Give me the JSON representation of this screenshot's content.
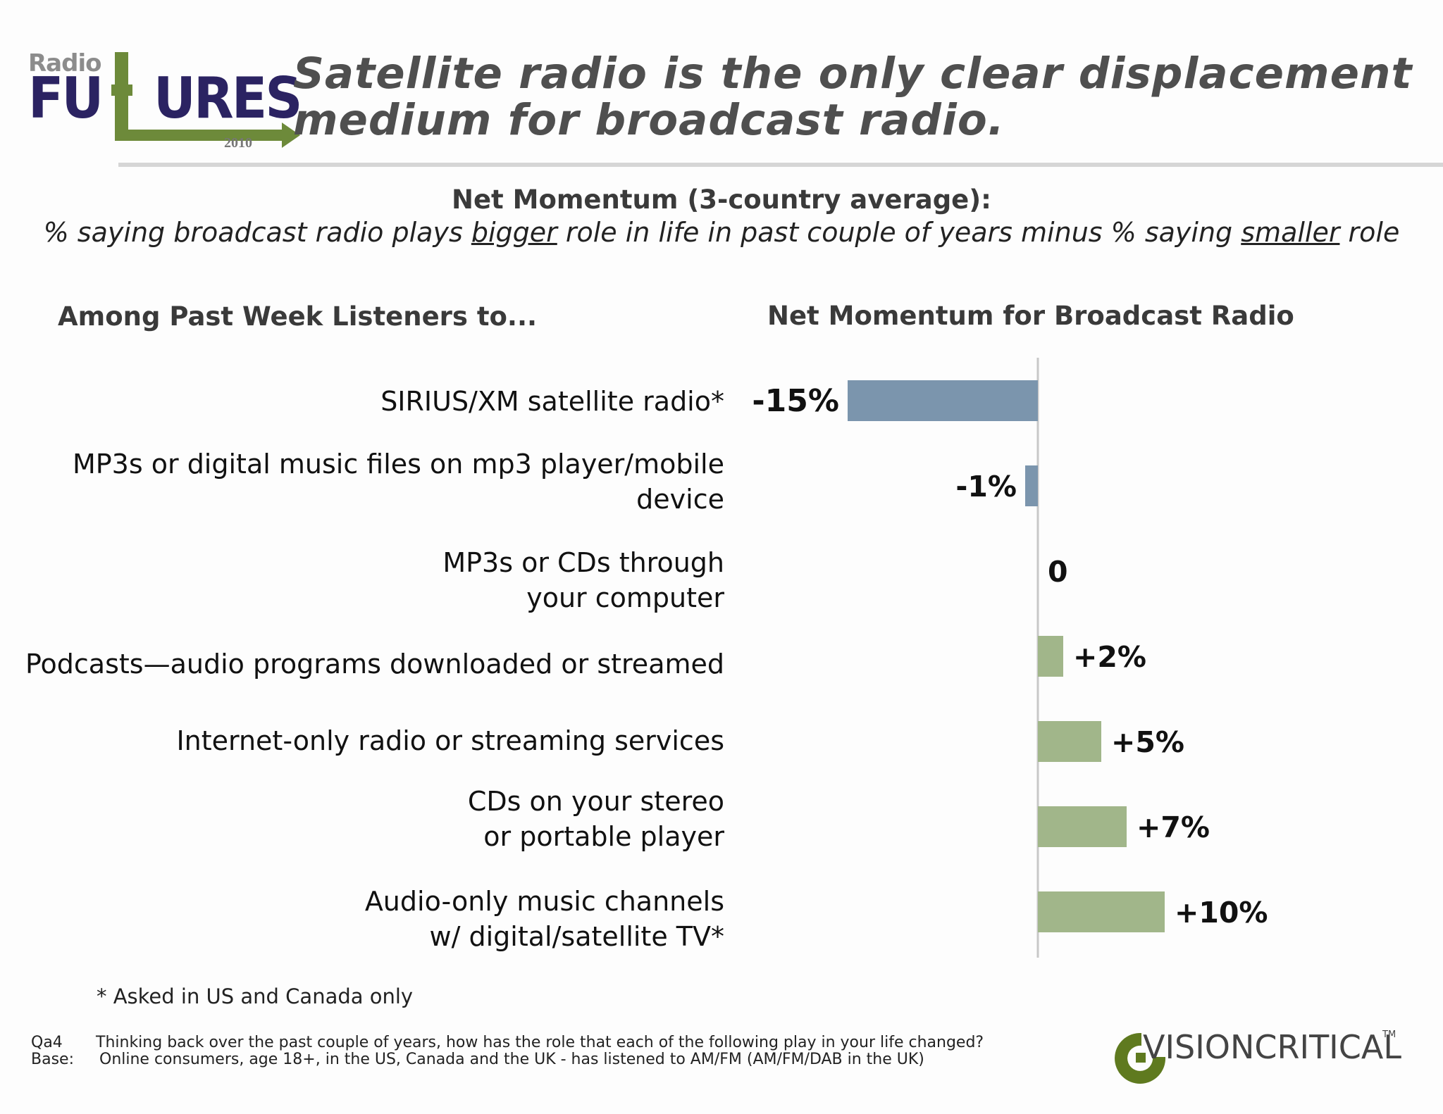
{
  "logo": {
    "top_word": "Radio",
    "main_word_left": "FU",
    "main_word_right": "URES",
    "year": "2010",
    "colors": {
      "navy": "#2b2362",
      "green": "#6d8a3a",
      "grey": "#8c8c8c"
    }
  },
  "title": "Satellite radio is the only clear displacement medium for broadcast radio.",
  "subtitle": {
    "line1": "Net Momentum (3-country average):",
    "line2_a": "% saying broadcast radio plays ",
    "line2_bigger": "bigger",
    "line2_b": " role in life in past couple of years minus % saying ",
    "line2_smaller": "smaller",
    "line2_c": " role"
  },
  "left_header": "Among Past Week Listeners to...",
  "chart_data": {
    "type": "bar",
    "orientation": "horizontal",
    "title": "Net Momentum for Broadcast Radio",
    "categories": [
      "SIRIUS/XM satellite radio*",
      "MP3s or digital music files on mp3 player/mobile\ndevice",
      "MP3s or CDs through\nyour computer",
      "Podcasts—audio programs downloaded or streamed",
      "Internet-only radio or streaming services",
      "CDs on your stereo\nor portable player",
      "Audio-only music channels\nw/ digital/satellite TV*"
    ],
    "values": [
      -15,
      -1,
      0,
      2,
      5,
      7,
      10
    ],
    "data_labels": [
      "-15%",
      "-1%",
      "0",
      "+2%",
      "+5%",
      "+7%",
      "+10%"
    ],
    "colors": {
      "negative": "#7b95ad",
      "positive": "#a1b68a",
      "axis": "#c8c8c8"
    }
  },
  "footnote": "* Asked in US and Canada only",
  "source": {
    "qa_key": "Qa4",
    "qa_text": "Thinking back over the past couple of years, how has the role that each of the following  play in your life changed?",
    "base_key": "Base:",
    "base_text": "Online consumers, age 18+, in the US, Canada and the UK - has listened to AM/FM (AM/FM/DAB in the UK)"
  },
  "vc_logo": {
    "text": "VISIONCRITICAL",
    "tm": "TM",
    "color": "#5f7a1f"
  }
}
